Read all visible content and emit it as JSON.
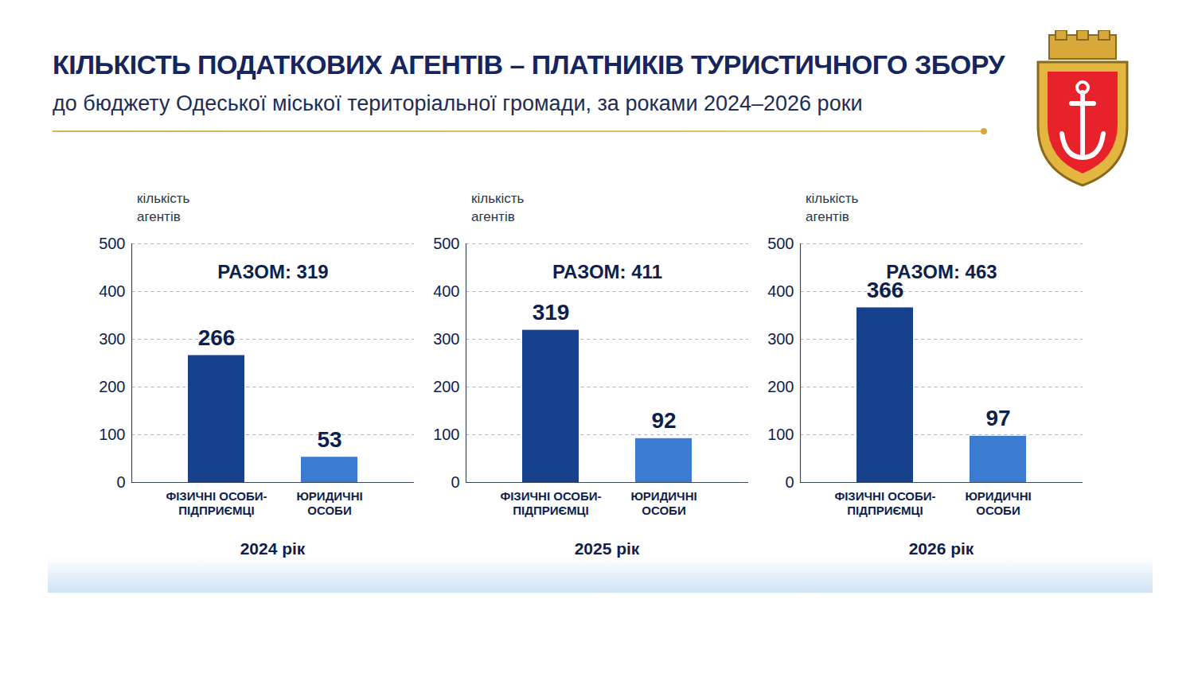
{
  "title": "КІЛЬКІСТЬ ПОДАТКОВИХ АГЕНТІВ – ПЛАТНИКІВ ТУРИСТИЧНОГО ЗБОРУ",
  "subtitle": "до бюджету Одеської міської територіальної громади, за роками 2024–2026 роки",
  "chart_data": [
    {
      "type": "bar",
      "annotation": "РАЗОМ: 319",
      "xlabel": "2024 рік",
      "ylabel": "кількість агентів",
      "categories": [
        "ФІЗИЧНІ ОСОБИ-ПІДПРИЄМЦІ",
        "ЮРИДИЧНІ ОСОБИ"
      ],
      "values": [
        266,
        53
      ],
      "colors": [
        "#17418d",
        "#3b7cd0"
      ],
      "ylim": [
        0,
        500
      ],
      "yticks": [
        0,
        100,
        200,
        300,
        400,
        500
      ],
      "grid": true,
      "data_labels": true
    },
    {
      "type": "bar",
      "annotation": "РАЗОМ: 411",
      "xlabel": "2025 рік",
      "ylabel": "кількість агентів",
      "categories": [
        "ФІЗИЧНІ ОСОБИ-ПІДПРИЄМЦІ",
        "ЮРИДИЧНІ ОСОБИ"
      ],
      "values": [
        319,
        92
      ],
      "colors": [
        "#17418d",
        "#3b7cd0"
      ],
      "ylim": [
        0,
        500
      ],
      "yticks": [
        0,
        100,
        200,
        300,
        400,
        500
      ],
      "grid": true,
      "data_labels": true
    },
    {
      "type": "bar",
      "annotation": "РАЗОМ: 463",
      "xlabel": "2026 рік",
      "ylabel": "кількість агентів",
      "categories": [
        "ФІЗИЧНІ ОСОБИ-ПІДПРИЄМЦІ",
        "ЮРИДИЧНІ ОСОБИ"
      ],
      "values": [
        366,
        97
      ],
      "colors": [
        "#17418d",
        "#3b7cd0"
      ],
      "ylim": [
        0,
        500
      ],
      "yticks": [
        0,
        100,
        200,
        300,
        400,
        500
      ],
      "grid": true,
      "data_labels": true
    }
  ]
}
